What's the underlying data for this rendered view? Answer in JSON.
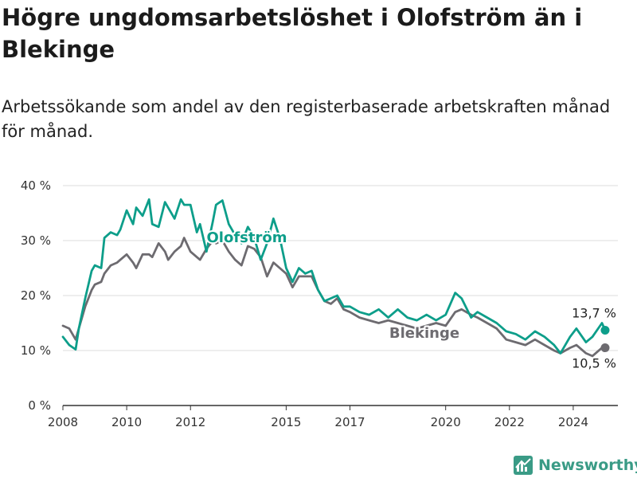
{
  "header": {
    "title": "Högre ungdomsarbetslöshet i Olofström än i Blekinge",
    "subtitle": "Arbetssökande som andel av den registerbaserade arbetskraften månad för månad."
  },
  "brand": {
    "name": "Newsworthy"
  },
  "colors": {
    "olofstrom": "#0d9e8a",
    "blekinge": "#6d6b70",
    "grid": "#dddddd",
    "axis": "#333333"
  },
  "chart_data": {
    "type": "line",
    "ylim": [
      0,
      40
    ],
    "y_ticks": [
      0,
      10,
      20,
      30,
      40
    ],
    "y_tick_labels": [
      "0 %",
      "10 %",
      "20 %",
      "30 %",
      "40 %"
    ],
    "xlim": [
      2008,
      2025.4
    ],
    "x_ticks": [
      2008,
      2010,
      2012,
      2015,
      2017,
      2020,
      2022,
      2024
    ],
    "x_tick_labels": [
      "2008",
      "2010",
      "2012",
      "2015",
      "2017",
      "2020",
      "2022",
      "2024"
    ],
    "series": [
      {
        "name": "Olofström",
        "x": [
          2008.0,
          2008.2,
          2008.4,
          2008.5,
          2008.7,
          2008.9,
          2009.0,
          2009.2,
          2009.3,
          2009.5,
          2009.7,
          2009.8,
          2010.0,
          2010.2,
          2010.3,
          2010.5,
          2010.7,
          2010.8,
          2011.0,
          2011.2,
          2011.3,
          2011.5,
          2011.7,
          2011.8,
          2012.0,
          2012.2,
          2012.3,
          2012.5,
          2012.7,
          2012.8,
          2013.0,
          2013.2,
          2013.4,
          2013.6,
          2013.8,
          2014.0,
          2014.2,
          2014.4,
          2014.6,
          2014.8,
          2015.0,
          2015.2,
          2015.4,
          2015.6,
          2015.8,
          2016.0,
          2016.2,
          2016.4,
          2016.6,
          2016.8,
          2017.0,
          2017.3,
          2017.6,
          2017.9,
          2018.2,
          2018.5,
          2018.8,
          2019.1,
          2019.4,
          2019.7,
          2020.0,
          2020.3,
          2020.5,
          2020.8,
          2021.0,
          2021.3,
          2021.6,
          2021.9,
          2022.2,
          2022.5,
          2022.8,
          2023.1,
          2023.4,
          2023.6,
          2023.9,
          2024.1,
          2024.4,
          2024.6,
          2024.9,
          2025.0
        ],
        "y": [
          12.5,
          11.0,
          10.2,
          14.0,
          19.5,
          24.5,
          25.5,
          25.0,
          30.5,
          31.5,
          31.0,
          32.0,
          35.5,
          33.0,
          36.0,
          34.5,
          37.5,
          33.0,
          32.5,
          37.0,
          36.0,
          34.0,
          37.5,
          36.5,
          36.5,
          31.5,
          33.0,
          28.0,
          33.5,
          36.5,
          37.3,
          33.0,
          31.0,
          29.5,
          32.5,
          30.5,
          26.5,
          29.5,
          34.0,
          30.5,
          25.0,
          22.5,
          25.0,
          24.0,
          24.5,
          21.0,
          19.0,
          19.5,
          20.0,
          18.0,
          18.0,
          17.0,
          16.5,
          17.5,
          16.0,
          17.5,
          16.0,
          15.5,
          16.5,
          15.5,
          16.5,
          20.5,
          19.5,
          16.0,
          17.0,
          16.0,
          15.0,
          13.5,
          13.0,
          12.0,
          13.5,
          12.5,
          11.0,
          9.5,
          12.5,
          14.0,
          11.5,
          12.5,
          15.0,
          13.7
        ],
        "end_label": "13,7 %"
      },
      {
        "name": "Blekinge",
        "x": [
          2008.0,
          2008.2,
          2008.4,
          2008.5,
          2008.7,
          2008.9,
          2009.0,
          2009.2,
          2009.3,
          2009.5,
          2009.7,
          2009.8,
          2010.0,
          2010.2,
          2010.3,
          2010.5,
          2010.7,
          2010.8,
          2011.0,
          2011.2,
          2011.3,
          2011.5,
          2011.7,
          2011.8,
          2012.0,
          2012.2,
          2012.3,
          2012.5,
          2012.7,
          2012.8,
          2013.0,
          2013.2,
          2013.4,
          2013.6,
          2013.8,
          2014.0,
          2014.2,
          2014.4,
          2014.6,
          2014.8,
          2015.0,
          2015.2,
          2015.4,
          2015.6,
          2015.8,
          2016.0,
          2016.2,
          2016.4,
          2016.6,
          2016.8,
          2017.0,
          2017.3,
          2017.6,
          2017.9,
          2018.2,
          2018.5,
          2018.8,
          2019.1,
          2019.4,
          2019.7,
          2020.0,
          2020.3,
          2020.5,
          2020.8,
          2021.0,
          2021.3,
          2021.6,
          2021.9,
          2022.2,
          2022.5,
          2022.8,
          2023.1,
          2023.4,
          2023.6,
          2023.9,
          2024.1,
          2024.4,
          2024.6,
          2024.9,
          2025.0
        ],
        "y": [
          14.5,
          14.0,
          12.0,
          14.0,
          18.0,
          21.0,
          22.0,
          22.5,
          24.0,
          25.5,
          26.0,
          26.5,
          27.5,
          26.0,
          25.0,
          27.5,
          27.5,
          27.0,
          29.5,
          28.0,
          26.5,
          28.0,
          29.0,
          30.5,
          28.0,
          27.0,
          26.5,
          28.5,
          30.0,
          29.5,
          30.0,
          28.0,
          26.5,
          25.5,
          29.0,
          28.5,
          27.0,
          23.5,
          26.0,
          25.0,
          24.0,
          21.5,
          23.5,
          23.5,
          23.5,
          21.0,
          19.0,
          18.5,
          19.5,
          17.5,
          17.0,
          16.0,
          15.5,
          15.0,
          15.5,
          15.0,
          14.5,
          14.0,
          14.5,
          15.0,
          14.5,
          17.0,
          17.5,
          16.5,
          16.0,
          15.0,
          14.0,
          12.0,
          11.5,
          11.0,
          12.0,
          11.0,
          10.0,
          9.5,
          10.5,
          11.0,
          9.5,
          9.0,
          10.5,
          10.5
        ],
        "end_label": "10,5 %"
      }
    ]
  }
}
